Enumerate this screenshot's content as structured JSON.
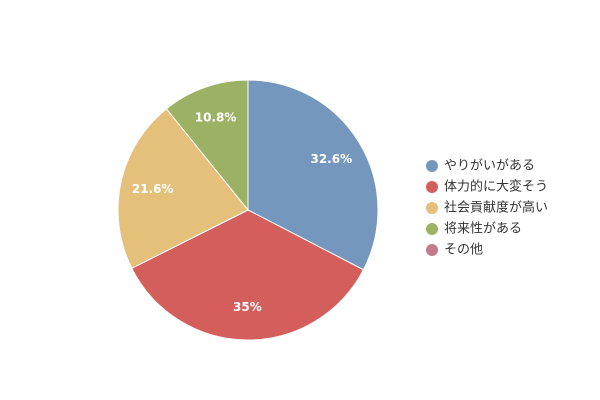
{
  "chart_data": {
    "type": "pie",
    "categories": [
      "やりがいがある",
      "体力的に大変そう",
      "社会貢献度が高い",
      "将来性がある",
      "その他"
    ],
    "values": [
      32.6,
      35,
      21.6,
      10.8,
      0
    ],
    "value_labels": [
      "32.6%",
      "35%",
      "21.6%",
      "10.8%",
      null
    ],
    "colors": [
      "#7596bd",
      "#d45e5c",
      "#e5c07b",
      "#9bb265",
      "#c27a8c"
    ],
    "legend": "right"
  }
}
